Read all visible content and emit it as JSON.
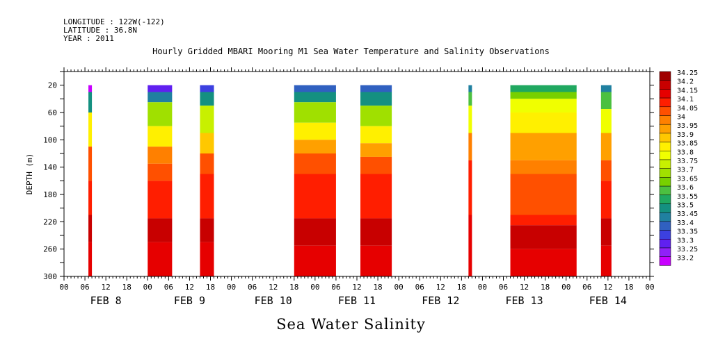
{
  "header": {
    "longitude": "LONGITUDE : 122W(-122)",
    "latitude": "LATITUDE : 36.8N",
    "year": "YEAR : 2011"
  },
  "title": "Hourly Gridded MBARI Mooring M1 Sea Water Temperature and Salinity Observations",
  "bottom_title": "Sea Water Salinity",
  "chart_data": {
    "type": "heatmap",
    "title": "Hourly Gridded MBARI Mooring M1 Sea Water Temperature and Salinity Observations",
    "xlabel": "",
    "ylabel": "DEPTH (m)",
    "x_hours_ticks": [
      "00",
      "06",
      "12",
      "18",
      "00",
      "06",
      "12",
      "18",
      "00",
      "06",
      "12",
      "18",
      "00",
      "06",
      "12",
      "18",
      "00",
      "06",
      "12",
      "18",
      "00",
      "06",
      "12",
      "18",
      "00",
      "06",
      "12",
      "18",
      "00"
    ],
    "x_day_labels": [
      "FEB  8",
      "FEB  9",
      "FEB 10",
      "FEB 11",
      "FEB 12",
      "FEB 13",
      "FEB 14"
    ],
    "x_range_hours_from_feb8": [
      0,
      168
    ],
    "y_ticks": [
      20,
      60,
      100,
      140,
      180,
      220,
      260,
      300
    ],
    "ylim": [
      0,
      300
    ],
    "y_inverted": true,
    "colorbar_levels": [
      "34.25",
      "34.2",
      "34.15",
      "34.1",
      "34.05",
      "34",
      "33.95",
      "33.9",
      "33.85",
      "33.8",
      "33.75",
      "33.7",
      "33.65",
      "33.6",
      "33.55",
      "33.5",
      "33.45",
      "33.4",
      "33.35",
      "33.3",
      "33.25",
      "33.2"
    ],
    "colorbar_colors": [
      "#a00000",
      "#c80000",
      "#e60000",
      "#ff1e00",
      "#ff5000",
      "#ff8000",
      "#ffa000",
      "#ffc800",
      "#fff000",
      "#f0ff00",
      "#c8f000",
      "#a0e000",
      "#78d000",
      "#4cc040",
      "#20a860",
      "#149080",
      "#2080a0",
      "#3060c0",
      "#3c40e0",
      "#6020f0",
      "#9020f8",
      "#c800ff"
    ],
    "observation_windows": [
      {
        "start": "FEB 8 07",
        "end": "FEB 8 08",
        "depth_profile": [
          [
            "33.2",
            "20"
          ],
          [
            "33.5",
            "60"
          ],
          [
            "33.85",
            "110"
          ],
          [
            "34.05",
            "160"
          ],
          [
            "34.1",
            "210"
          ],
          [
            "34.2",
            "250"
          ],
          [
            "34.15",
            "300"
          ]
        ]
      },
      {
        "start": "FEB 9 00",
        "end": "FEB 9 07",
        "depth_profile": [
          [
            "33.3",
            "20"
          ],
          [
            "33.45",
            "45"
          ],
          [
            "33.7",
            "80"
          ],
          [
            "33.85",
            "110"
          ],
          [
            "34.0",
            "135"
          ],
          [
            "34.05",
            "160"
          ],
          [
            "34.1",
            "215"
          ],
          [
            "34.2",
            "250"
          ],
          [
            "34.15",
            "300"
          ]
        ]
      },
      {
        "start": "FEB 9 15",
        "end": "FEB 9 19",
        "depth_profile": [
          [
            "33.35",
            "20"
          ],
          [
            "33.5",
            "50"
          ],
          [
            "33.75",
            "90"
          ],
          [
            "33.9",
            "120"
          ],
          [
            "34.05",
            "150"
          ],
          [
            "34.1",
            "215"
          ],
          [
            "34.2",
            "250"
          ],
          [
            "34.15",
            "300"
          ]
        ]
      },
      {
        "start": "FEB 10 18",
        "end": "FEB 11 06",
        "depth_profile": [
          [
            "33.4",
            "20"
          ],
          [
            "33.5",
            "45"
          ],
          [
            "33.7",
            "75"
          ],
          [
            "33.85",
            "100"
          ],
          [
            "33.95",
            "120"
          ],
          [
            "34.05",
            "150"
          ],
          [
            "34.1",
            "215"
          ],
          [
            "34.2",
            "255"
          ],
          [
            "34.15",
            "300"
          ]
        ]
      },
      {
        "start": "FEB 11 13",
        "end": "FEB 11 22",
        "depth_profile": [
          [
            "33.4",
            "20"
          ],
          [
            "33.5",
            "50"
          ],
          [
            "33.7",
            "80"
          ],
          [
            "33.85",
            "105"
          ],
          [
            "33.95",
            "125"
          ],
          [
            "34.05",
            "150"
          ],
          [
            "34.1",
            "215"
          ],
          [
            "34.2",
            "255"
          ],
          [
            "34.15",
            "300"
          ]
        ]
      },
      {
        "start": "FEB 12 20",
        "end": "FEB 12 21",
        "depth_profile": [
          [
            "33.45",
            "20"
          ],
          [
            "33.6",
            "50"
          ],
          [
            "33.8",
            "90"
          ],
          [
            "34.0",
            "130"
          ],
          [
            "34.1",
            "210"
          ],
          [
            "34.15",
            "300"
          ]
        ]
      },
      {
        "start": "FEB 13 08",
        "end": "FEB 14 03",
        "depth_profile": [
          [
            "33.55",
            "20"
          ],
          [
            "33.65",
            "40"
          ],
          [
            "33.8",
            "60"
          ],
          [
            "33.85",
            "90"
          ],
          [
            "33.95",
            "130"
          ],
          [
            "34.0",
            "150"
          ],
          [
            "34.05",
            "210"
          ],
          [
            "34.1",
            "225"
          ],
          [
            "34.2",
            "260"
          ],
          [
            "34.15",
            "300"
          ]
        ]
      },
      {
        "start": "FEB 14 10",
        "end": "FEB 14 13",
        "depth_profile": [
          [
            "33.45",
            "20"
          ],
          [
            "33.6",
            "55"
          ],
          [
            "33.8",
            "90"
          ],
          [
            "33.95",
            "130"
          ],
          [
            "34.05",
            "160"
          ],
          [
            "34.1",
            "215"
          ],
          [
            "34.2",
            "255"
          ],
          [
            "34.15",
            "300"
          ]
        ]
      }
    ]
  }
}
